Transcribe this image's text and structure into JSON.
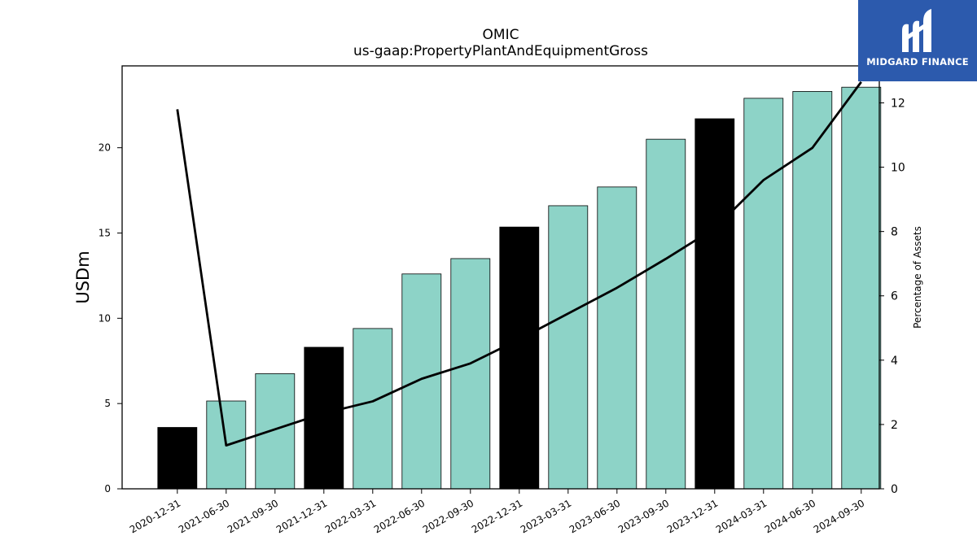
{
  "brand": {
    "name": "MIDGARD FINANCE",
    "bg_color": "#2c5aad"
  },
  "chart_data": {
    "type": "bar",
    "title": "OMIC",
    "subtitle": "us-gaap:PropertyPlantAndEquipmentGross",
    "ylabel": "USDm",
    "y2label": "Percentage of Assets",
    "categories": [
      "2020-12-31",
      "2021-06-30",
      "2021-09-30",
      "2021-12-31",
      "2022-03-31",
      "2022-06-30",
      "2022-09-30",
      "2022-12-31",
      "2023-03-31",
      "2023-06-30",
      "2023-09-30",
      "2023-12-31",
      "2024-03-31",
      "2024-06-30",
      "2024-09-30"
    ],
    "series": [
      {
        "type": "bar",
        "values": [
          3.6,
          5.15,
          6.75,
          8.3,
          9.4,
          12.6,
          13.5,
          15.35,
          16.6,
          17.7,
          20.5,
          21.7,
          22.9,
          23.3,
          23.55
        ],
        "colors": [
          "#000000",
          "#8dd3c7",
          "#8dd3c7",
          "#000000",
          "#8dd3c7",
          "#8dd3c7",
          "#8dd3c7",
          "#000000",
          "#8dd3c7",
          "#8dd3c7",
          "#8dd3c7",
          "#000000",
          "#8dd3c7",
          "#8dd3c7",
          "#8dd3c7"
        ]
      },
      {
        "type": "line",
        "axis": "right",
        "color": "#000000",
        "values": [
          11.8,
          1.35,
          1.85,
          2.35,
          2.72,
          3.42,
          3.9,
          4.65,
          5.45,
          6.25,
          7.15,
          8.1,
          9.6,
          10.6,
          12.65
        ]
      }
    ],
    "ylim": [
      0,
      24.8
    ],
    "y2lim": [
      0,
      13.15
    ],
    "yticks": [
      0,
      5,
      10,
      15,
      20
    ],
    "y2ticks": [
      0,
      2,
      4,
      6,
      8,
      10,
      12
    ],
    "grid": false
  }
}
